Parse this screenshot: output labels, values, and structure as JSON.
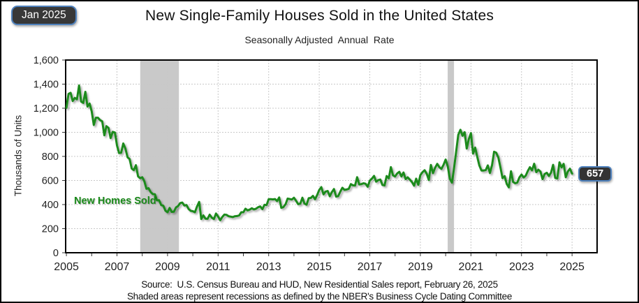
{
  "header": {
    "date_badge": "Jan 2025",
    "title": "New Single-Family Houses Sold in the United States",
    "subtitle": "Seasonally Adjusted  Annual  Rate"
  },
  "chart_data": {
    "type": "line",
    "title": "New Single-Family Houses Sold in the United States",
    "subtitle": "Seasonally Adjusted Annual Rate",
    "xlabel": "",
    "ylabel": "Thousands of Units",
    "ylim": [
      0,
      1600
    ],
    "y_ticks": [
      0,
      200,
      400,
      600,
      800,
      1000,
      1200,
      1400,
      1600
    ],
    "y_tick_labels": [
      "0",
      "200",
      "400",
      "600",
      "800",
      "1,000",
      "1,200",
      "1,400",
      "1,600"
    ],
    "x_tick_years": [
      2005,
      2007,
      2009,
      2011,
      2013,
      2015,
      2017,
      2019,
      2021,
      2023,
      2025
    ],
    "x_minor_tick_step": 1,
    "x_domain": [
      2004.97,
      2025.99
    ],
    "grid": "dashed",
    "legend_position": "none",
    "annotation": "New Homes Sold",
    "latest_point": {
      "label": "Jan 2025",
      "value": 657
    },
    "recessions": [
      {
        "start": 2007.92,
        "end": 2009.45
      },
      {
        "start": 2020.08,
        "end": 2020.33
      }
    ],
    "colors": {
      "line": "#1a8a1a",
      "recession_fill": "#c9c9c9",
      "grid": "#c8c8c8",
      "frame": "#000000",
      "tick": "#333333"
    },
    "series": [
      {
        "name": "New Homes Sold",
        "frequency": "monthly",
        "start_year": 2005,
        "start_month": 1,
        "values": [
          1203,
          1319,
          1328,
          1260,
          1286,
          1274,
          1389,
          1255,
          1244,
          1336,
          1214,
          1239,
          1174,
          1061,
          1121,
          1121,
          1101,
          1091,
          975,
          1051,
          1036,
          952,
          1004,
          998,
          891,
          828,
          830,
          907,
          865,
          793,
          778,
          699,
          686,
          727,
          634,
          619,
          627,
          593,
          531,
          536,
          503,
          487,
          485,
          435,
          436,
          396,
          390,
          349,
          336,
          372,
          339,
          341,
          376,
          388,
          413,
          417,
          392,
          396,
          363,
          348,
          345,
          336,
          384,
          422,
          280,
          310,
          283,
          282,
          316,
          291,
          280,
          326,
          301,
          270,
          297,
          317,
          315,
          303,
          300,
          296,
          303,
          305,
          310,
          336,
          336,
          366,
          352,
          358,
          369,
          360,
          366,
          378,
          385,
          362,
          398,
          396,
          444,
          445,
          443,
          446,
          429,
          459,
          373,
          379,
          403,
          450,
          446,
          442,
          457,
          432,
          403,
          408,
          457,
          408,
          399,
          453,
          455,
          472,
          444,
          479,
          521,
          545,
          485,
          508,
          513,
          469,
          503,
          529,
          466,
          470,
          508,
          540,
          522,
          525,
          531,
          570,
          560,
          558,
          627,
          567,
          570,
          577,
          573,
          548,
          599,
          615,
          638,
          590,
          603,
          608,
          563,
          559,
          637,
          618,
          711,
          643,
          633,
          659,
          672,
          633,
          666,
          611,
          626,
          607,
          587,
          557,
          615,
          564,
          644,
          669,
          685,
          656,
          604,
          729,
          661,
          706,
          738,
          710,
          696,
          730,
          774,
          716,
          612,
          582,
          704,
          840,
          979,
          1021,
          971,
          1001,
          865,
          943,
          993,
          823,
          873,
          796,
          724,
          683,
          683,
          686,
          725,
          662,
          725,
          839,
          831,
          790,
          707,
          619,
          636,
          571,
          543,
          677,
          588,
          577,
          582,
          625,
          649,
          625,
          640,
          679,
          710,
          684,
          739,
          669,
          689,
          674,
          611,
          654,
          664,
          637,
          665,
          730,
          621,
          617,
          751,
          709,
          738,
          627,
          674,
          698,
          657
        ]
      }
    ]
  },
  "footer": {
    "source_line": "Source:  U.S. Census Bureau and HUD, New Residential Sales report, February 26, 2025",
    "note_line": "Shaded areas represent recessions as defined by the NBER's Business Cycle Dating Committee"
  }
}
